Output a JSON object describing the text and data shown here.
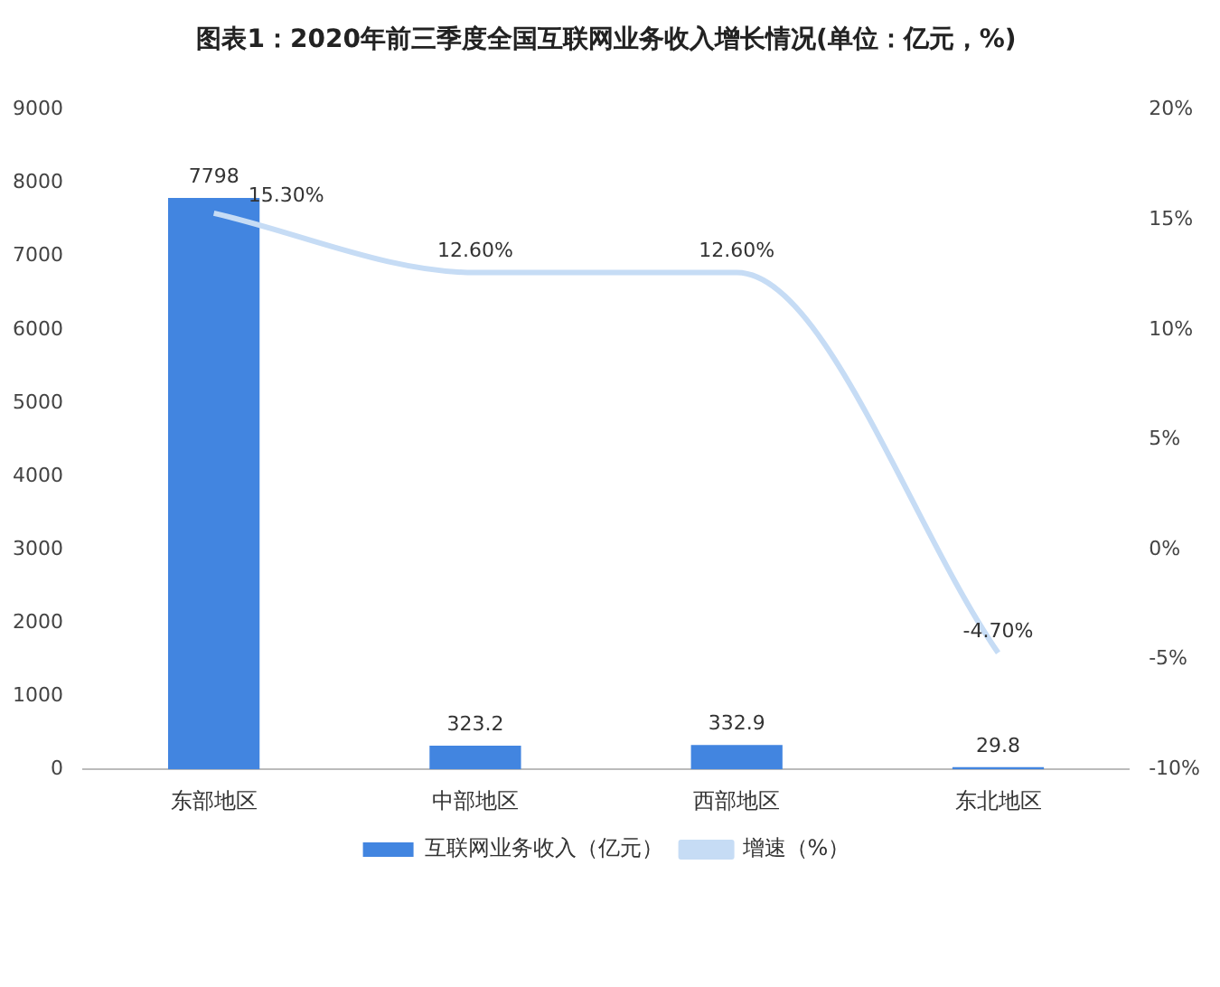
{
  "chart_data": {
    "type": "bar",
    "title": "图表1：2020年前三季度全国互联网业务收入增长情况(单位：亿元，%)",
    "categories": [
      "东部地区",
      "中部地区",
      "西部地区",
      "东北地区"
    ],
    "series": [
      {
        "name": "互联网业务收入（亿元）",
        "color": "#4285e0",
        "values": [
          7798,
          323.2,
          332.9,
          29.8
        ],
        "value_labels": [
          "7798",
          "323.2",
          "332.9",
          "29.8"
        ]
      },
      {
        "name": "增速（%）",
        "type": "line",
        "axis": "y2",
        "color": "#c6dcf5",
        "values": [
          15.3,
          12.6,
          12.6,
          -4.7
        ],
        "value_labels": [
          "15.30%",
          "12.60%",
          "12.60%",
          "-4.70%"
        ]
      }
    ],
    "ylim": [
      0,
      9000
    ],
    "yticks": [
      0,
      1000,
      2000,
      3000,
      4000,
      5000,
      6000,
      7000,
      8000,
      9000
    ],
    "y2lim": [
      -10,
      20
    ],
    "y2ticks": [
      {
        "value": -10,
        "label": "-10%"
      },
      {
        "value": -5,
        "label": "-5%"
      },
      {
        "value": 0,
        "label": "0%"
      },
      {
        "value": 5,
        "label": "5%"
      },
      {
        "value": 10,
        "label": "10%"
      },
      {
        "value": 15,
        "label": "15%"
      },
      {
        "value": 20,
        "label": "20%"
      }
    ],
    "grid": false,
    "legend": "bottom",
    "marker": "none"
  }
}
